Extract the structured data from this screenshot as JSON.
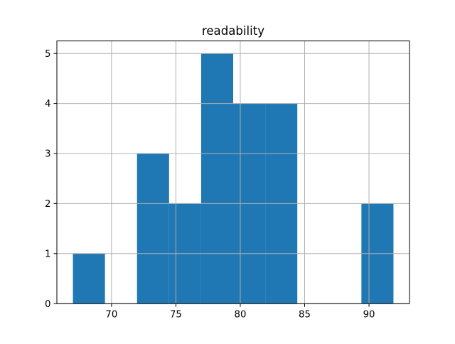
{
  "chart_data": {
    "type": "bar",
    "subtype": "histogram",
    "title": "readability",
    "xlabel": "",
    "ylabel": "",
    "bin_edges": [
      67.0,
      69.49,
      71.98,
      74.47,
      76.96,
      79.45,
      81.94,
      84.43,
      86.92,
      89.41,
      91.9
    ],
    "counts": [
      1,
      0,
      3,
      2,
      5,
      4,
      4,
      0,
      0,
      2
    ],
    "xlim": [
      65.755,
      93.145
    ],
    "ylim": [
      0,
      5.25
    ],
    "xticks": [
      70,
      75,
      80,
      85,
      90
    ],
    "yticks": [
      0,
      1,
      2,
      3,
      4,
      5
    ],
    "grid": true,
    "grid_above_bars": true,
    "legend": "none",
    "colors": {
      "bar": "#1f77b4",
      "grid": "#b0b0b0",
      "axis": "#000000",
      "background": "#ffffff"
    }
  }
}
